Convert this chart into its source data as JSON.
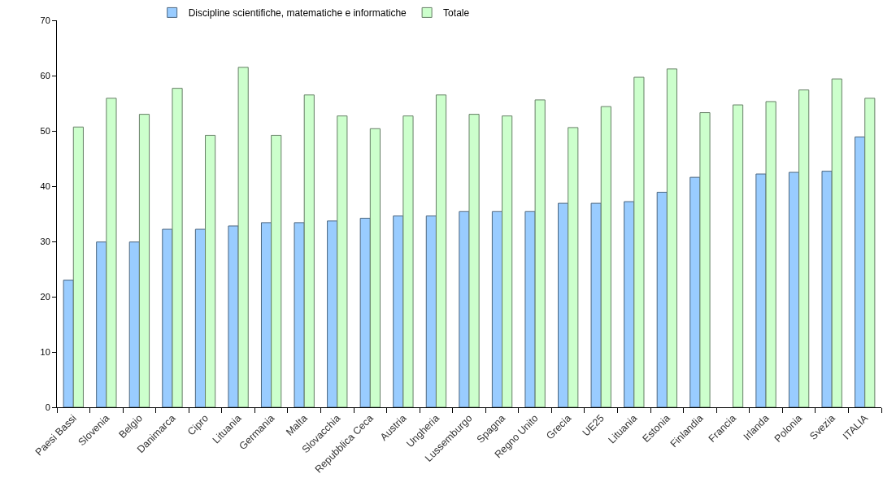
{
  "chart_data": {
    "type": "bar",
    "categories": [
      "Paesi Bassi",
      "Slovenia",
      "Belgio",
      "Danimarca",
      "Cipro",
      "Lituania",
      "Germania",
      "Malta",
      "Slovacchia",
      "Repubblica Ceca",
      "Austria",
      "Ungheria",
      "Lussemburgo",
      "Spagna",
      "Regno Unito",
      "Grecia",
      "UE25",
      "Lituania",
      "Estonia",
      "Finlandia",
      "Francia",
      "Irlanda",
      "Polonia",
      "Svezia",
      "ITALIA"
    ],
    "series": [
      {
        "name": "Discipline scientifiche, matematiche e informatiche",
        "color": "#99ccff",
        "values": [
          23.0,
          29.9,
          29.9,
          32.2,
          32.2,
          32.8,
          33.4,
          33.4,
          33.7,
          34.2,
          34.6,
          34.6,
          35.4,
          35.4,
          35.4,
          36.9,
          36.9,
          37.2,
          38.9,
          41.6,
          null,
          42.2,
          42.5,
          42.7,
          48.9
        ]
      },
      {
        "name": "Totale",
        "color": "#ccffcc",
        "values": [
          50.7,
          55.9,
          53.0,
          57.7,
          49.2,
          61.5,
          49.2,
          56.5,
          52.7,
          50.4,
          52.7,
          56.5,
          53.0,
          52.7,
          55.6,
          50.6,
          54.4,
          59.7,
          61.2,
          53.3,
          54.7,
          55.3,
          57.4,
          59.4,
          55.9
        ]
      }
    ],
    "ylim": [
      0,
      70
    ],
    "yticks": [
      0,
      10,
      20,
      30,
      40,
      50,
      60,
      70
    ],
    "legend": "top"
  }
}
